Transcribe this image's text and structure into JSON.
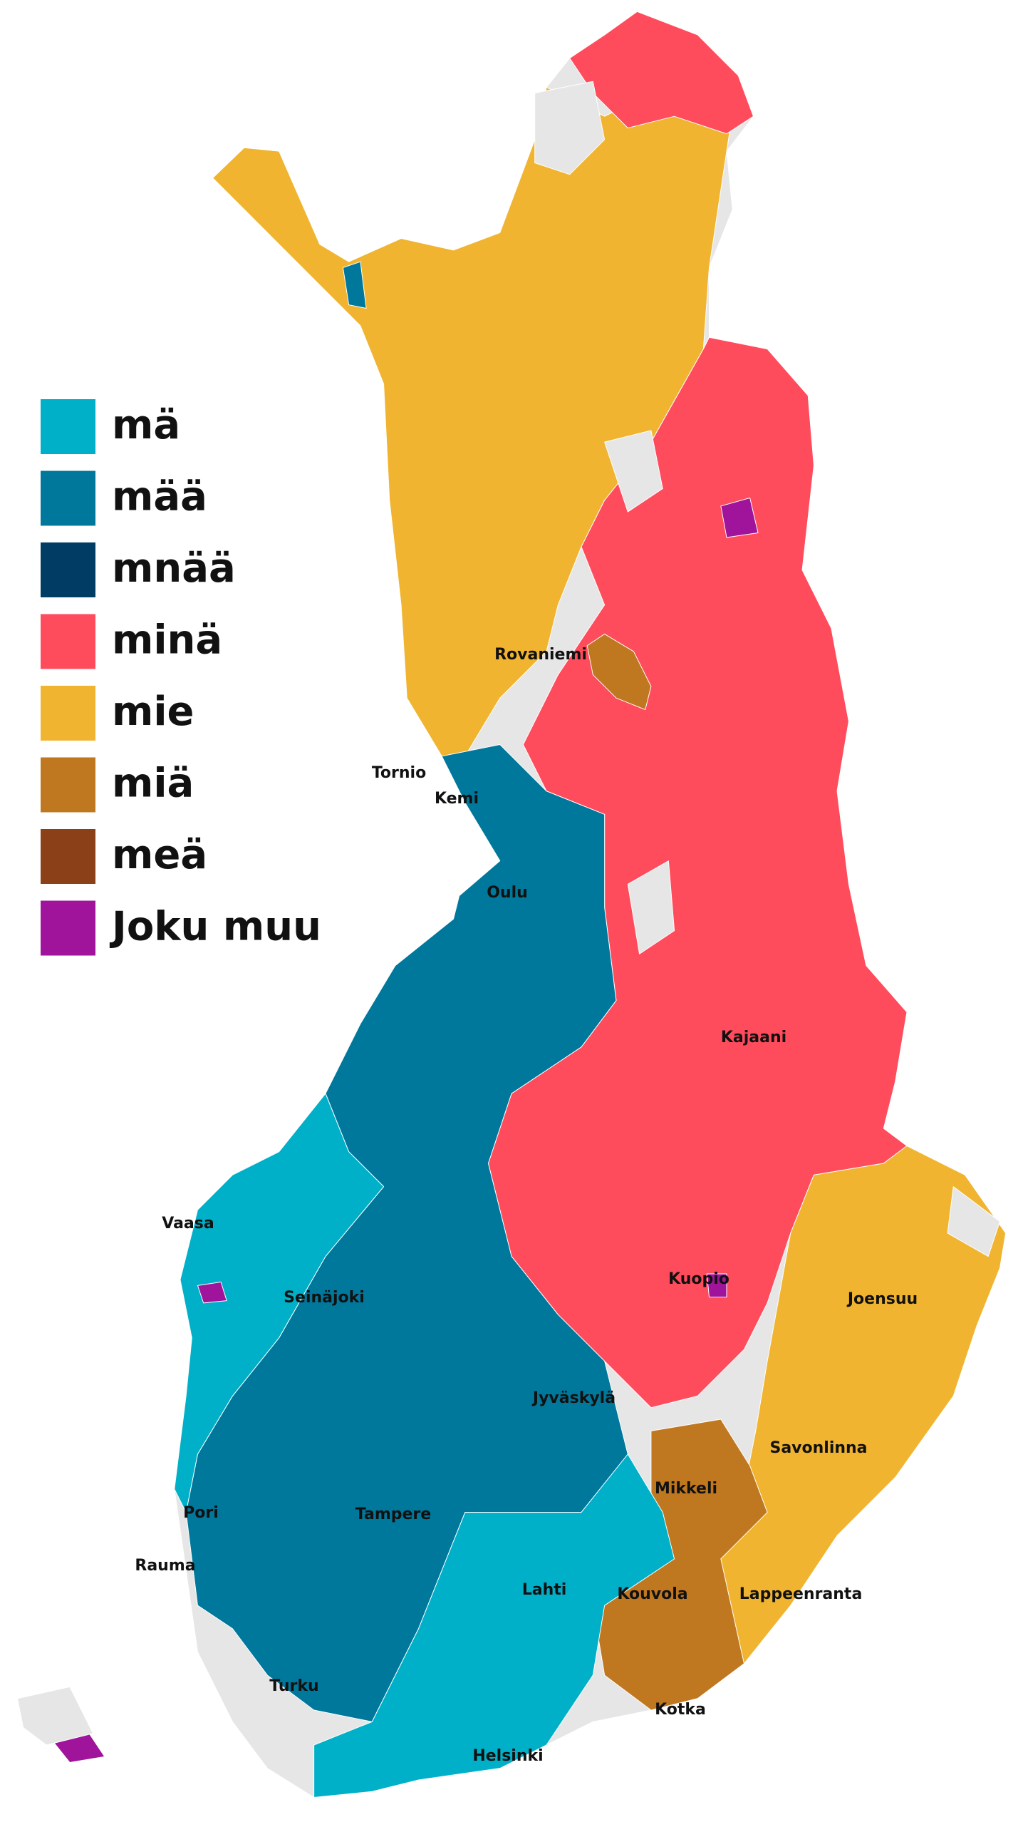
{
  "legend": [
    {
      "label": "mä",
      "color": "#00b0c8"
    },
    {
      "label": "mää",
      "color": "#00789c"
    },
    {
      "label": "mnää",
      "color": "#003c64"
    },
    {
      "label": "minä",
      "color": "#ff4c5c"
    },
    {
      "label": "mie",
      "color": "#f0b430"
    },
    {
      "label": "miä",
      "color": "#c07820"
    },
    {
      "label": "meä",
      "color": "#8c4018"
    },
    {
      "label": "Joku muu",
      "color": "#a0149c"
    }
  ],
  "cities": [
    "Rovaniemi",
    "Tornio",
    "Kemi",
    "Oulu",
    "Kajaani",
    "Vaasa",
    "Seinäjoki",
    "Kuopio",
    "Joensuu",
    "Jyväskylä",
    "Savonlinna",
    "Mikkeli",
    "Pori",
    "Tampere",
    "Rauma",
    "Lahti",
    "Kouvola",
    "Lappeenranta",
    "Turku",
    "Kotka",
    "Helsinki"
  ]
}
